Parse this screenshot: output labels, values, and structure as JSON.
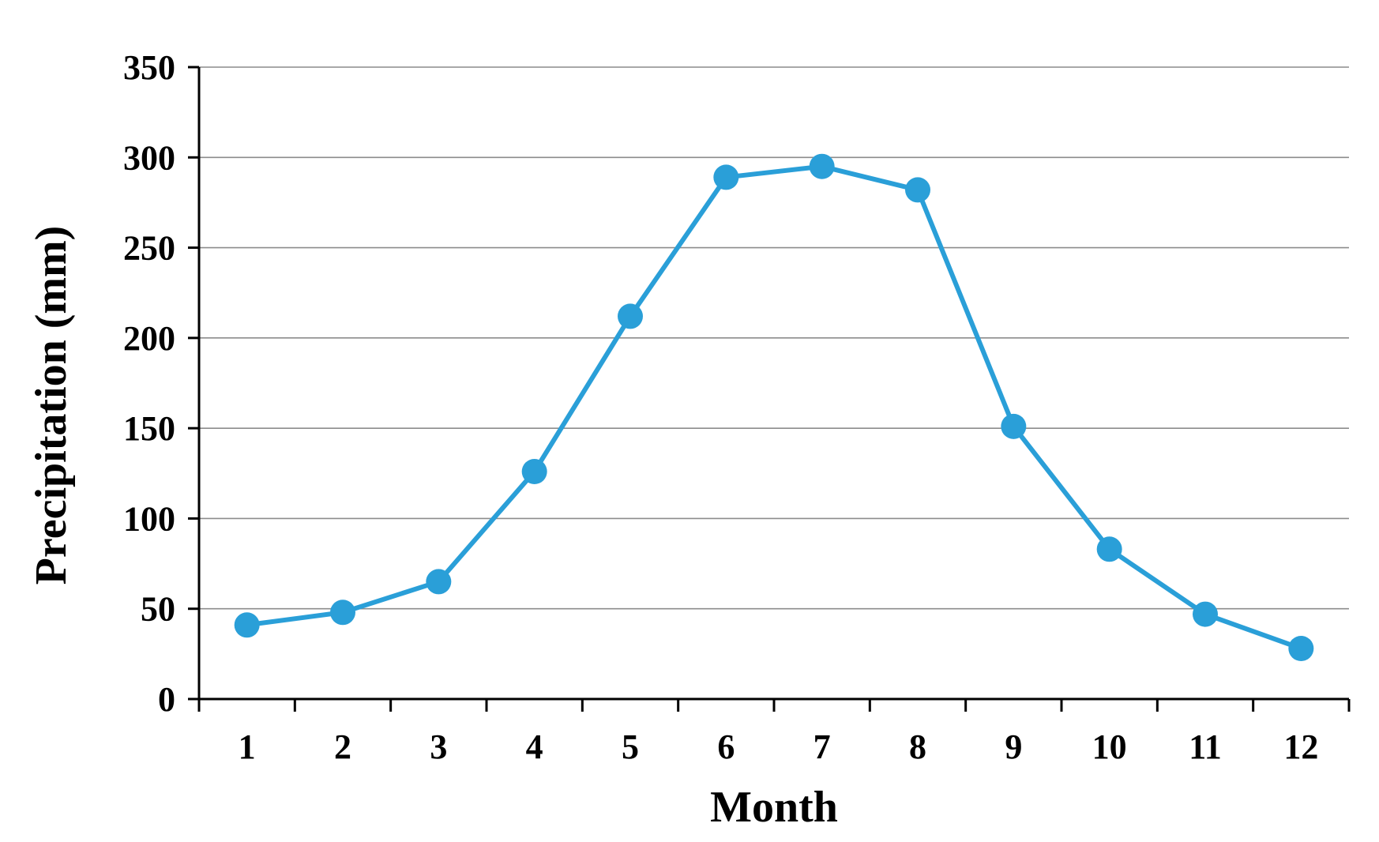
{
  "chart_data": {
    "type": "line",
    "title": "",
    "xlabel": "Month",
    "ylabel": "Precipitation (mm)",
    "categories": [
      "1",
      "2",
      "3",
      "4",
      "5",
      "6",
      "7",
      "8",
      "9",
      "10",
      "11",
      "12"
    ],
    "series": [
      {
        "values": [
          41,
          48,
          65,
          126,
          212,
          289,
          295,
          282,
          151,
          83,
          47,
          28
        ],
        "color": "#2a9fd8"
      }
    ],
    "ylim": [
      0,
      350
    ],
    "yticks": [
      0,
      50,
      100,
      150,
      200,
      250,
      300,
      350
    ],
    "grid": true,
    "legend": "none",
    "marker": "circle"
  }
}
